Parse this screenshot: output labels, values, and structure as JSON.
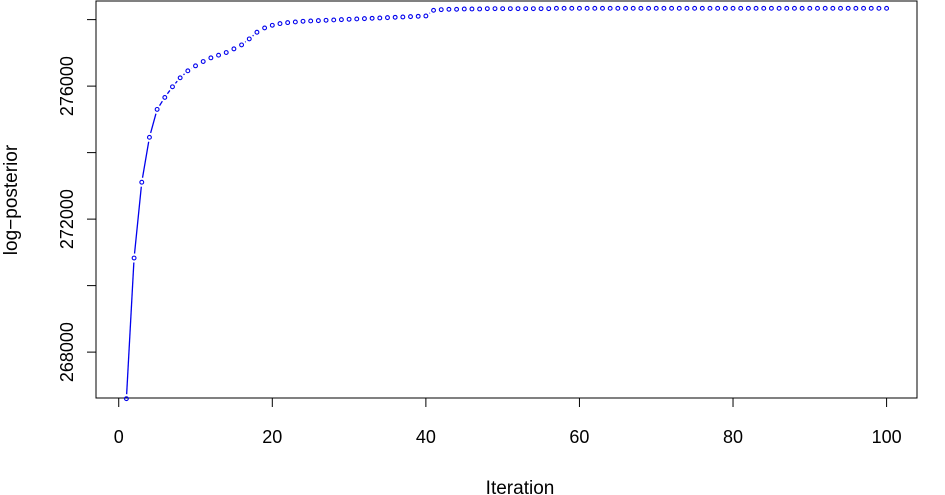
{
  "chart_data": {
    "type": "line",
    "xlabel": "Iteration",
    "ylabel": "log−posterior",
    "xlim": [
      -2.96,
      103.96
    ],
    "ylim": [
      266620,
      278560
    ],
    "grid": false,
    "line_style": "both",
    "series_color": "#0000ee",
    "x_ticks": [
      0,
      20,
      40,
      60,
      80,
      100
    ],
    "y_ticks": [
      268000,
      270000,
      272000,
      274000,
      276000,
      278000
    ],
    "y_tick_labels": [
      "268000",
      "",
      "272000",
      "",
      "276000",
      ""
    ],
    "x_tick_labels": [
      "0",
      "20",
      "40",
      "60",
      "80",
      "100"
    ],
    "series": [
      {
        "values": [
          266600,
          270830,
          273110,
          274460,
          275300,
          275660,
          275980,
          276250,
          276460,
          276610,
          276740,
          276850,
          276930,
          277010,
          277120,
          277240,
          277420,
          277620,
          277750,
          277830,
          277880,
          277910,
          277930,
          277950,
          277960,
          277970,
          277980,
          277990,
          278000,
          278010,
          278020,
          278030,
          278040,
          278050,
          278060,
          278070,
          278080,
          278090,
          278100,
          278110,
          278280,
          278300,
          278310,
          278310,
          278320,
          278320,
          278320,
          278330,
          278330,
          278330,
          278330,
          278330,
          278330,
          278330,
          278330,
          278330,
          278340,
          278340,
          278340,
          278340,
          278340,
          278340,
          278340,
          278340,
          278340,
          278340,
          278340,
          278340,
          278340,
          278340,
          278340,
          278340,
          278340,
          278340,
          278340,
          278340,
          278340,
          278340,
          278340,
          278340,
          278340,
          278340,
          278340,
          278340,
          278340,
          278340,
          278340,
          278340,
          278340,
          278340,
          278340,
          278340,
          278340,
          278340,
          278340,
          278340,
          278340,
          278340,
          278340,
          278340
        ]
      }
    ]
  }
}
